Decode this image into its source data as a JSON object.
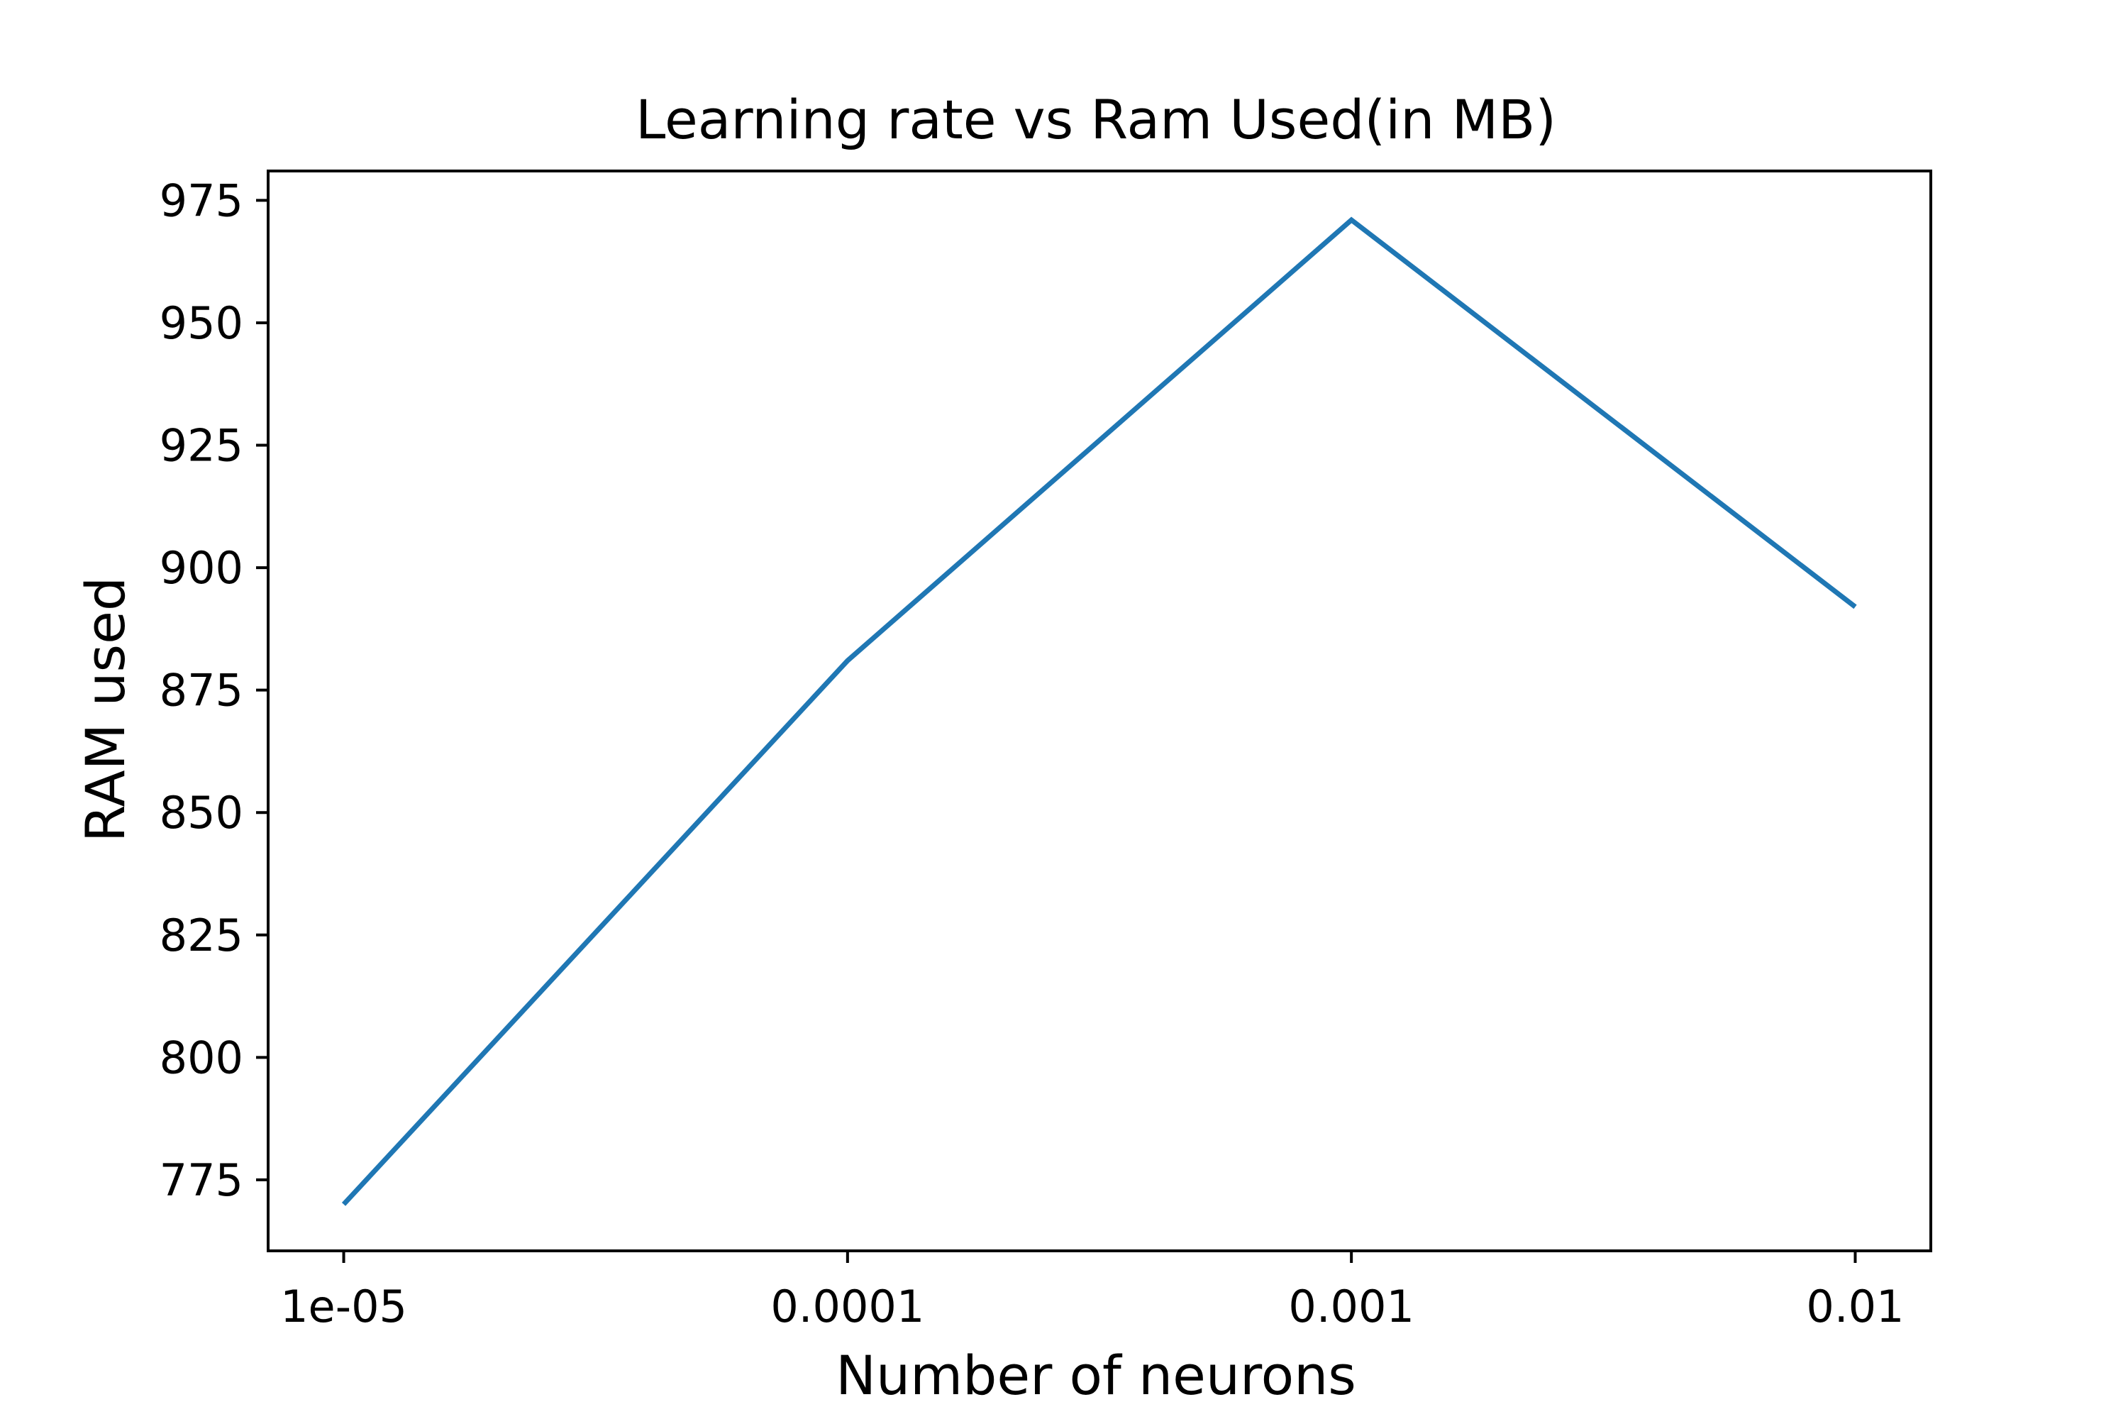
{
  "chart_data": {
    "type": "line",
    "title": "Learning rate vs Ram Used(in MB)",
    "xlabel": "Number of neurons",
    "ylabel": "RAM used",
    "categories": [
      "1e-05",
      "0.0001",
      "0.001",
      "0.01"
    ],
    "series": [
      {
        "name": "RAM used",
        "values": [
          770,
          881,
          971,
          892
        ]
      }
    ],
    "yticks": [
      775,
      800,
      825,
      850,
      875,
      900,
      925,
      950,
      975
    ],
    "ylim": [
      760.5,
      981
    ],
    "grid": false,
    "legend": "none",
    "colors": {
      "line": "#1f77b4",
      "axes": "#000000",
      "background": "#ffffff"
    }
  }
}
